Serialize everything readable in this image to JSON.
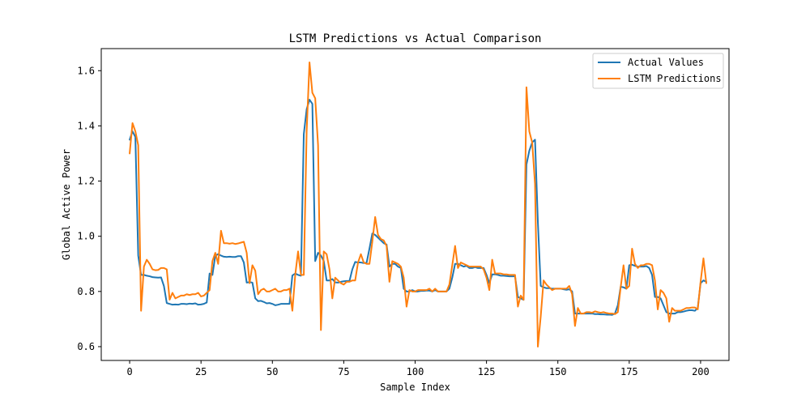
{
  "chart_data": {
    "type": "line",
    "title": "LSTM Predictions vs Actual Comparison",
    "xlabel": "Sample Index",
    "ylabel": "Global Active Power",
    "xlim": [
      -9.95,
      209.95
    ],
    "ylim": [
      0.55,
      1.68
    ],
    "x_ticks": [
      0,
      25,
      50,
      75,
      100,
      125,
      150,
      175,
      200
    ],
    "y_ticks": [
      0.6,
      0.8,
      1.0,
      1.2,
      1.4,
      1.6
    ],
    "y_tick_labels": [
      "0.6",
      "0.8",
      "1.0",
      "1.2",
      "1.4",
      "1.6"
    ],
    "grid": false,
    "legend_position": "top-right",
    "series": [
      {
        "name": "Actual Values",
        "color": "#1f77b4",
        "values": [
          1.35,
          1.38,
          1.36,
          0.93,
          0.86,
          0.86,
          0.857,
          0.855,
          0.852,
          0.851,
          0.85,
          0.851,
          0.82,
          0.758,
          0.755,
          0.752,
          0.753,
          0.752,
          0.755,
          0.755,
          0.754,
          0.756,
          0.755,
          0.757,
          0.752,
          0.753,
          0.755,
          0.76,
          0.865,
          0.86,
          0.93,
          0.935,
          0.93,
          0.926,
          0.925,
          0.926,
          0.925,
          0.925,
          0.928,
          0.928,
          0.905,
          0.832,
          0.834,
          0.832,
          0.775,
          0.765,
          0.766,
          0.762,
          0.757,
          0.758,
          0.755,
          0.75,
          0.752,
          0.755,
          0.755,
          0.755,
          0.755,
          0.858,
          0.865,
          0.86,
          0.857,
          1.37,
          1.46,
          1.495,
          1.48,
          0.91,
          0.94,
          0.93,
          0.91,
          0.84,
          0.84,
          0.845,
          0.833,
          0.832,
          0.835,
          0.837,
          0.838,
          0.838,
          0.88,
          0.907,
          0.905,
          0.905,
          0.903,
          0.904,
          0.955,
          1.01,
          1.005,
          0.995,
          0.985,
          0.975,
          0.97,
          0.89,
          0.9,
          0.9,
          0.89,
          0.885,
          0.81,
          0.8,
          0.8,
          0.805,
          0.8,
          0.8,
          0.802,
          0.802,
          0.803,
          0.803,
          0.8,
          0.805,
          0.8,
          0.8,
          0.8,
          0.8,
          0.81,
          0.85,
          0.9,
          0.9,
          0.895,
          0.89,
          0.893,
          0.885,
          0.885,
          0.888,
          0.885,
          0.885,
          0.885,
          0.86,
          0.83,
          0.862,
          0.862,
          0.86,
          0.857,
          0.857,
          0.856,
          0.855,
          0.855,
          0.855,
          0.78,
          0.775,
          0.77,
          1.26,
          1.31,
          1.34,
          1.35,
          1.05,
          0.82,
          0.815,
          0.812,
          0.812,
          0.81,
          0.81,
          0.81,
          0.81,
          0.808,
          0.806,
          0.808,
          0.8,
          0.72,
          0.72,
          0.72,
          0.72,
          0.72,
          0.72,
          0.72,
          0.718,
          0.718,
          0.717,
          0.717,
          0.716,
          0.716,
          0.715,
          0.72,
          0.75,
          0.817,
          0.815,
          0.81,
          0.895,
          0.897,
          0.893,
          0.89,
          0.89,
          0.89,
          0.892,
          0.885,
          0.86,
          0.78,
          0.78,
          0.775,
          0.75,
          0.725,
          0.72,
          0.72,
          0.72,
          0.725,
          0.725,
          0.727,
          0.73,
          0.732,
          0.732,
          0.73,
          0.74,
          0.83,
          0.84,
          0.835
        ]
      },
      {
        "name": "LSTM Predictions",
        "color": "#ff7f0e",
        "values": [
          1.3,
          1.41,
          1.38,
          1.33,
          0.73,
          0.89,
          0.915,
          0.9,
          0.88,
          0.877,
          0.878,
          0.885,
          0.885,
          0.88,
          0.77,
          0.795,
          0.775,
          0.78,
          0.785,
          0.785,
          0.79,
          0.787,
          0.79,
          0.79,
          0.795,
          0.782,
          0.785,
          0.795,
          0.805,
          0.91,
          0.94,
          0.9,
          1.02,
          0.975,
          0.975,
          0.973,
          0.975,
          0.972,
          0.974,
          0.977,
          0.98,
          0.94,
          0.83,
          0.895,
          0.875,
          0.79,
          0.805,
          0.81,
          0.8,
          0.8,
          0.805,
          0.81,
          0.8,
          0.8,
          0.805,
          0.805,
          0.81,
          0.73,
          0.86,
          0.945,
          0.86,
          0.86,
          1.38,
          1.63,
          1.52,
          1.5,
          1.33,
          0.66,
          0.945,
          0.935,
          0.88,
          0.775,
          0.85,
          0.84,
          0.83,
          0.825,
          0.835,
          0.835,
          0.84,
          0.84,
          0.905,
          0.935,
          0.905,
          0.9,
          0.9,
          0.98,
          1.07,
          1.005,
          0.99,
          0.985,
          0.965,
          0.835,
          0.91,
          0.905,
          0.9,
          0.89,
          0.85,
          0.745,
          0.805,
          0.8,
          0.8,
          0.805,
          0.805,
          0.805,
          0.805,
          0.81,
          0.8,
          0.81,
          0.8,
          0.8,
          0.8,
          0.8,
          0.825,
          0.895,
          0.965,
          0.885,
          0.905,
          0.9,
          0.895,
          0.89,
          0.89,
          0.89,
          0.89,
          0.89,
          0.88,
          0.85,
          0.805,
          0.915,
          0.865,
          0.865,
          0.865,
          0.862,
          0.862,
          0.86,
          0.86,
          0.86,
          0.745,
          0.785,
          0.77,
          1.54,
          1.38,
          1.34,
          1.19,
          0.6,
          0.71,
          0.84,
          0.825,
          0.815,
          0.805,
          0.81,
          0.81,
          0.81,
          0.81,
          0.81,
          0.82,
          0.79,
          0.675,
          0.74,
          0.72,
          0.72,
          0.725,
          0.725,
          0.723,
          0.728,
          0.725,
          0.723,
          0.725,
          0.722,
          0.72,
          0.72,
          0.718,
          0.725,
          0.815,
          0.895,
          0.81,
          0.82,
          0.955,
          0.9,
          0.885,
          0.895,
          0.895,
          0.9,
          0.9,
          0.895,
          0.84,
          0.735,
          0.805,
          0.795,
          0.775,
          0.69,
          0.74,
          0.73,
          0.73,
          0.73,
          0.735,
          0.74,
          0.74,
          0.742,
          0.742,
          0.735,
          0.835,
          0.92,
          0.83
        ]
      }
    ]
  }
}
